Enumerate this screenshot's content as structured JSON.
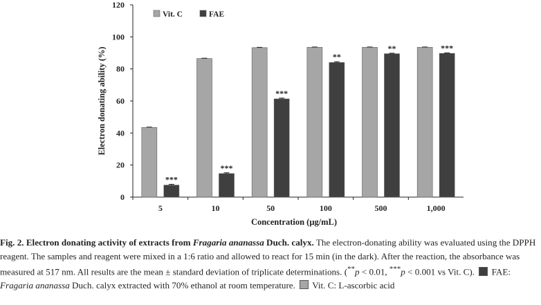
{
  "chart_data": {
    "type": "bar",
    "categories": [
      "5",
      "10",
      "50",
      "100",
      "500",
      "1,000"
    ],
    "xlabel": "Concentration (μg/mL)",
    "ylabel": "Electron donating ability (%)",
    "ylim": [
      0,
      120
    ],
    "yticks": [
      0,
      20,
      40,
      60,
      80,
      100,
      120
    ],
    "grid": false,
    "legend_position": "top-left",
    "series": [
      {
        "name": "Vit. C",
        "color": "#a6a6a6",
        "values": [
          43.5,
          86.5,
          93.3,
          93.5,
          93.5,
          93.5
        ],
        "errors": [
          0.2,
          0.2,
          0.2,
          0.2,
          0.2,
          0.2
        ],
        "significance": [
          "",
          "",
          "",
          "",
          "",
          ""
        ]
      },
      {
        "name": "FAE",
        "color": "#3f3f3f",
        "values": [
          7.5,
          14.7,
          61.3,
          84.0,
          89.5,
          89.7
        ],
        "errors": [
          0.5,
          0.5,
          0.5,
          0.5,
          0.3,
          0.3
        ],
        "significance": [
          "***",
          "***",
          "***",
          "**",
          "**",
          "***"
        ]
      }
    ]
  },
  "caption": {
    "fig_label": "Fig. 2. Electron donating activity of extracts from ",
    "species": "Fragaria ananassa",
    "fig_label_end": " Duch. calyx.",
    "text1": " The electron-donating ability was evaluated using the DPPH reagent. The samples and reagent were mixed in a 1:6 ratio and allowed to react for 15 min (in the dark). After the reaction, the absorbance was measured at 517 nm. All results are the mean ± standard deviation of triplicate determinations. (",
    "sig2": "**",
    "p1": "p",
    "lt1": " < 0.01, ",
    "sig3": "***",
    "p2": "p",
    "lt2": " < 0.001 vs Vit. C). ",
    "fae_label": "FAE: ",
    "fae_species": "Fragaria ananassa",
    "fae_text": " Duch. calyx extracted with 70% ethanol at room temperature. ",
    "vitc_text": "Vit. C: L-ascorbic acid",
    "fae_color": "#3f3f3f",
    "vitc_color": "#a6a6a6"
  }
}
